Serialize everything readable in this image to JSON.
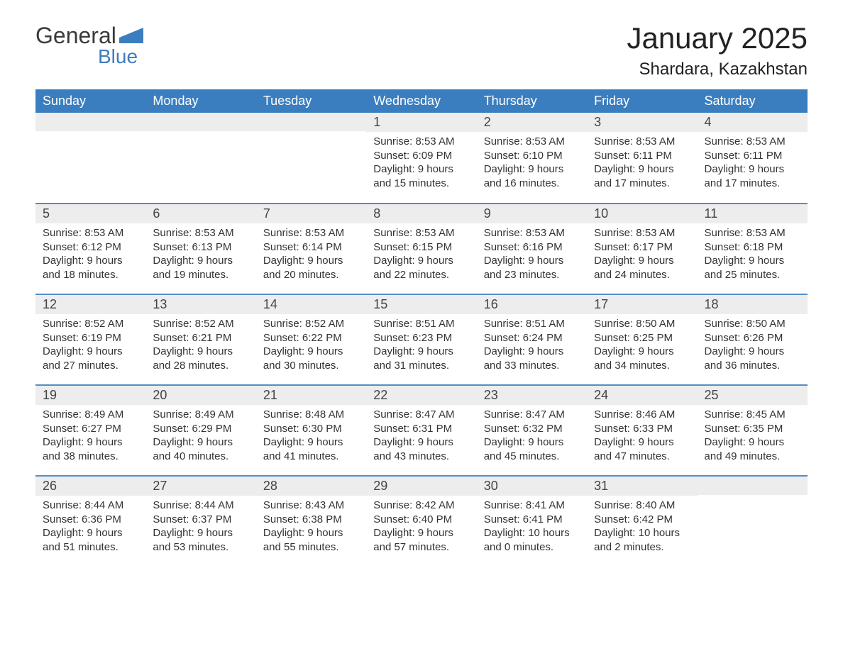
{
  "logo": {
    "word1": "General",
    "word2": "Blue"
  },
  "title": "January 2025",
  "subtitle": "Shardara, Kazakhstan",
  "colors": {
    "header_bg": "#3b7ebf",
    "header_text": "#ffffff",
    "row_border": "#4f8fc9",
    "daynum_bg": "#ededed",
    "body_text": "#333333",
    "page_bg": "#ffffff",
    "logo_blue": "#3b7ebf",
    "logo_dark": "#3a3a3a"
  },
  "typography": {
    "title_fontsize": 42,
    "subtitle_fontsize": 24,
    "th_fontsize": 18,
    "daynum_fontsize": 18,
    "body_fontsize": 15
  },
  "dayNames": [
    "Sunday",
    "Monday",
    "Tuesday",
    "Wednesday",
    "Thursday",
    "Friday",
    "Saturday"
  ],
  "weeks": [
    [
      null,
      null,
      null,
      {
        "n": "1",
        "sr": "Sunrise: 8:53 AM",
        "ss": "Sunset: 6:09 PM",
        "d1": "Daylight: 9 hours",
        "d2": "and 15 minutes."
      },
      {
        "n": "2",
        "sr": "Sunrise: 8:53 AM",
        "ss": "Sunset: 6:10 PM",
        "d1": "Daylight: 9 hours",
        "d2": "and 16 minutes."
      },
      {
        "n": "3",
        "sr": "Sunrise: 8:53 AM",
        "ss": "Sunset: 6:11 PM",
        "d1": "Daylight: 9 hours",
        "d2": "and 17 minutes."
      },
      {
        "n": "4",
        "sr": "Sunrise: 8:53 AM",
        "ss": "Sunset: 6:11 PM",
        "d1": "Daylight: 9 hours",
        "d2": "and 17 minutes."
      }
    ],
    [
      {
        "n": "5",
        "sr": "Sunrise: 8:53 AM",
        "ss": "Sunset: 6:12 PM",
        "d1": "Daylight: 9 hours",
        "d2": "and 18 minutes."
      },
      {
        "n": "6",
        "sr": "Sunrise: 8:53 AM",
        "ss": "Sunset: 6:13 PM",
        "d1": "Daylight: 9 hours",
        "d2": "and 19 minutes."
      },
      {
        "n": "7",
        "sr": "Sunrise: 8:53 AM",
        "ss": "Sunset: 6:14 PM",
        "d1": "Daylight: 9 hours",
        "d2": "and 20 minutes."
      },
      {
        "n": "8",
        "sr": "Sunrise: 8:53 AM",
        "ss": "Sunset: 6:15 PM",
        "d1": "Daylight: 9 hours",
        "d2": "and 22 minutes."
      },
      {
        "n": "9",
        "sr": "Sunrise: 8:53 AM",
        "ss": "Sunset: 6:16 PM",
        "d1": "Daylight: 9 hours",
        "d2": "and 23 minutes."
      },
      {
        "n": "10",
        "sr": "Sunrise: 8:53 AM",
        "ss": "Sunset: 6:17 PM",
        "d1": "Daylight: 9 hours",
        "d2": "and 24 minutes."
      },
      {
        "n": "11",
        "sr": "Sunrise: 8:53 AM",
        "ss": "Sunset: 6:18 PM",
        "d1": "Daylight: 9 hours",
        "d2": "and 25 minutes."
      }
    ],
    [
      {
        "n": "12",
        "sr": "Sunrise: 8:52 AM",
        "ss": "Sunset: 6:19 PM",
        "d1": "Daylight: 9 hours",
        "d2": "and 27 minutes."
      },
      {
        "n": "13",
        "sr": "Sunrise: 8:52 AM",
        "ss": "Sunset: 6:21 PM",
        "d1": "Daylight: 9 hours",
        "d2": "and 28 minutes."
      },
      {
        "n": "14",
        "sr": "Sunrise: 8:52 AM",
        "ss": "Sunset: 6:22 PM",
        "d1": "Daylight: 9 hours",
        "d2": "and 30 minutes."
      },
      {
        "n": "15",
        "sr": "Sunrise: 8:51 AM",
        "ss": "Sunset: 6:23 PM",
        "d1": "Daylight: 9 hours",
        "d2": "and 31 minutes."
      },
      {
        "n": "16",
        "sr": "Sunrise: 8:51 AM",
        "ss": "Sunset: 6:24 PM",
        "d1": "Daylight: 9 hours",
        "d2": "and 33 minutes."
      },
      {
        "n": "17",
        "sr": "Sunrise: 8:50 AM",
        "ss": "Sunset: 6:25 PM",
        "d1": "Daylight: 9 hours",
        "d2": "and 34 minutes."
      },
      {
        "n": "18",
        "sr": "Sunrise: 8:50 AM",
        "ss": "Sunset: 6:26 PM",
        "d1": "Daylight: 9 hours",
        "d2": "and 36 minutes."
      }
    ],
    [
      {
        "n": "19",
        "sr": "Sunrise: 8:49 AM",
        "ss": "Sunset: 6:27 PM",
        "d1": "Daylight: 9 hours",
        "d2": "and 38 minutes."
      },
      {
        "n": "20",
        "sr": "Sunrise: 8:49 AM",
        "ss": "Sunset: 6:29 PM",
        "d1": "Daylight: 9 hours",
        "d2": "and 40 minutes."
      },
      {
        "n": "21",
        "sr": "Sunrise: 8:48 AM",
        "ss": "Sunset: 6:30 PM",
        "d1": "Daylight: 9 hours",
        "d2": "and 41 minutes."
      },
      {
        "n": "22",
        "sr": "Sunrise: 8:47 AM",
        "ss": "Sunset: 6:31 PM",
        "d1": "Daylight: 9 hours",
        "d2": "and 43 minutes."
      },
      {
        "n": "23",
        "sr": "Sunrise: 8:47 AM",
        "ss": "Sunset: 6:32 PM",
        "d1": "Daylight: 9 hours",
        "d2": "and 45 minutes."
      },
      {
        "n": "24",
        "sr": "Sunrise: 8:46 AM",
        "ss": "Sunset: 6:33 PM",
        "d1": "Daylight: 9 hours",
        "d2": "and 47 minutes."
      },
      {
        "n": "25",
        "sr": "Sunrise: 8:45 AM",
        "ss": "Sunset: 6:35 PM",
        "d1": "Daylight: 9 hours",
        "d2": "and 49 minutes."
      }
    ],
    [
      {
        "n": "26",
        "sr": "Sunrise: 8:44 AM",
        "ss": "Sunset: 6:36 PM",
        "d1": "Daylight: 9 hours",
        "d2": "and 51 minutes."
      },
      {
        "n": "27",
        "sr": "Sunrise: 8:44 AM",
        "ss": "Sunset: 6:37 PM",
        "d1": "Daylight: 9 hours",
        "d2": "and 53 minutes."
      },
      {
        "n": "28",
        "sr": "Sunrise: 8:43 AM",
        "ss": "Sunset: 6:38 PM",
        "d1": "Daylight: 9 hours",
        "d2": "and 55 minutes."
      },
      {
        "n": "29",
        "sr": "Sunrise: 8:42 AM",
        "ss": "Sunset: 6:40 PM",
        "d1": "Daylight: 9 hours",
        "d2": "and 57 minutes."
      },
      {
        "n": "30",
        "sr": "Sunrise: 8:41 AM",
        "ss": "Sunset: 6:41 PM",
        "d1": "Daylight: 10 hours",
        "d2": "and 0 minutes."
      },
      {
        "n": "31",
        "sr": "Sunrise: 8:40 AM",
        "ss": "Sunset: 6:42 PM",
        "d1": "Daylight: 10 hours",
        "d2": "and 2 minutes."
      },
      null
    ]
  ]
}
